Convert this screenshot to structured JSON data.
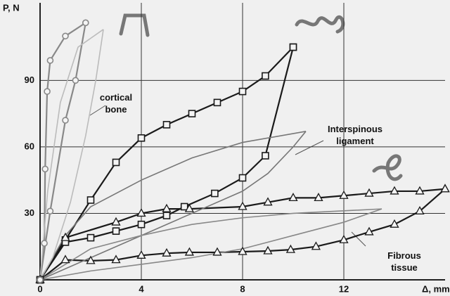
{
  "chart_data": {
    "type": "line",
    "x_label": "Δ, mm",
    "y_label": "P, N",
    "xlim": [
      0,
      16
    ],
    "ylim": [
      0,
      125
    ],
    "xticks": [
      0,
      4,
      8,
      12
    ],
    "yticks": [
      30,
      60,
      90
    ],
    "grid": true,
    "annotations": [
      "cortical bone",
      "Interspinous ligament",
      "Fibrous tissue"
    ],
    "series": [
      {
        "color": "#1a1a1a",
        "marker": "square",
        "x": [
          0,
          1,
          2,
          3,
          4,
          5,
          6,
          7,
          8,
          8.9,
          10
        ],
        "values": [
          0,
          18,
          36,
          53,
          64,
          70,
          75,
          80,
          85,
          92,
          105
        ]
      },
      {
        "color": "#1a1a1a",
        "marker": "square",
        "x": [
          10,
          8.9,
          8,
          6.9,
          5.7,
          5,
          4,
          3,
          2,
          1,
          0
        ],
        "values": [
          105,
          56,
          46,
          39,
          33,
          29,
          25,
          22,
          19,
          17,
          0
        ]
      },
      {
        "color": "#1a1a1a",
        "marker": "triangle",
        "x": [
          0,
          1,
          3,
          4,
          5,
          5.9,
          8,
          9,
          10,
          11,
          12,
          13,
          14,
          15,
          16
        ],
        "values": [
          0,
          19,
          26,
          30,
          32,
          32,
          33,
          35,
          37,
          37,
          38,
          39,
          40,
          40,
          41
        ]
      },
      {
        "color": "#1a1a1a",
        "marker": "triangle",
        "x": [
          16,
          15,
          14,
          13,
          12,
          10.9,
          9.9,
          9,
          8,
          7,
          5.9,
          5,
          4,
          3,
          2,
          1,
          0
        ],
        "values": [
          41,
          31,
          25,
          21.6,
          18,
          15,
          13.6,
          13,
          12.7,
          12.4,
          12.4,
          12,
          11,
          9,
          8.6,
          9,
          0
        ]
      },
      {
        "color": "#888888",
        "marker": "circle",
        "x": [
          0,
          0.17,
          0.2,
          0.28,
          0.4,
          1,
          1.8
        ],
        "values": [
          0,
          16.5,
          50,
          85,
          99,
          110,
          116
        ]
      },
      {
        "color": "#888888",
        "marker": "circle",
        "x": [
          1.8,
          1.4,
          1,
          0.4,
          0
        ],
        "values": [
          116,
          90,
          72,
          31,
          0
        ]
      },
      {
        "color": "#777777",
        "x": [
          0,
          1,
          2,
          4,
          6,
          8,
          10.5
        ],
        "values": [
          0,
          20,
          33,
          45,
          55,
          62,
          67
        ]
      },
      {
        "color": "#777777",
        "x": [
          10.5,
          10,
          9,
          8,
          6,
          4,
          2,
          0
        ],
        "values": [
          67,
          60,
          48,
          40,
          30,
          20,
          10,
          0
        ]
      },
      {
        "color": "#888888",
        "x": [
          0,
          2,
          4,
          6,
          8,
          10,
          13.5
        ],
        "values": [
          0,
          14,
          20,
          25,
          28,
          30,
          32
        ]
      },
      {
        "color": "#888888",
        "x": [
          13.5,
          12,
          10,
          8,
          6,
          4,
          2,
          0
        ],
        "values": [
          32,
          26,
          20,
          14,
          10,
          7,
          4,
          0
        ]
      },
      {
        "color": "#bbbbbb",
        "x": [
          0,
          0.3,
          0.8,
          1.5,
          2.5
        ],
        "values": [
          0,
          40,
          80,
          105,
          113
        ]
      },
      {
        "color": "#bbbbbb",
        "x": [
          2.5,
          2.2,
          1.8,
          1.2,
          0.5,
          0
        ],
        "values": [
          113,
          90,
          65,
          35,
          10,
          0
        ]
      }
    ]
  }
}
